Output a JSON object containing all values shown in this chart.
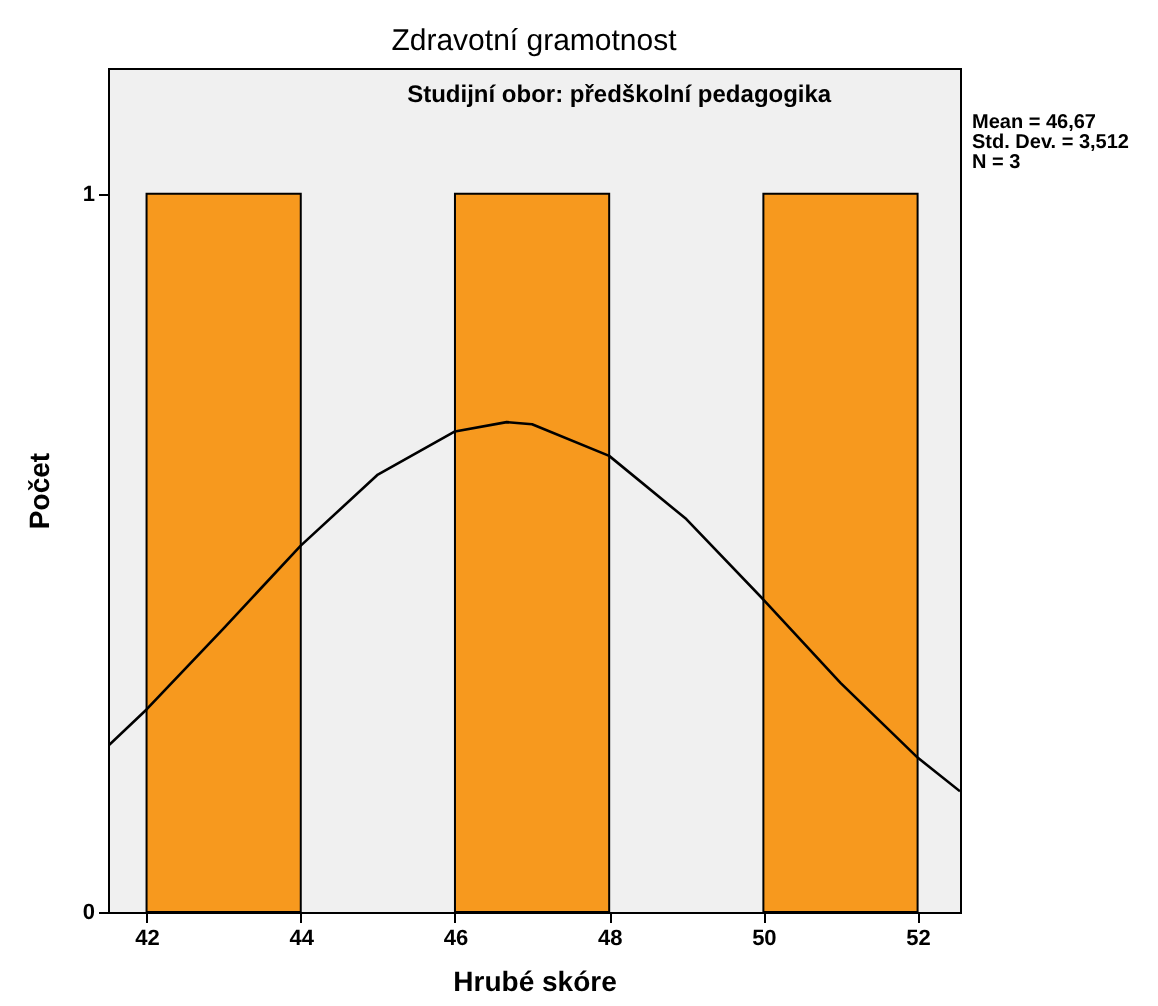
{
  "chart_data": {
    "type": "histogram",
    "title": "Zdravotní gramotnost",
    "subtitle": "Studijní obor: předškolní pedagogika",
    "xlabel": "Hrubé skóre",
    "ylabel": "Počet",
    "bins": [
      42,
      44,
      46,
      48,
      50,
      52
    ],
    "values": [
      1,
      0,
      1,
      0,
      1
    ],
    "color": "#f7991e",
    "series": [
      {
        "type": "line",
        "color": "#000000",
        "x": [
          41.5,
          42,
          43,
          44,
          45,
          46,
          46.67,
          47,
          48,
          49,
          50,
          51,
          52,
          52.55
        ],
        "values": [
          0.231,
          0.282,
          0.395,
          0.51,
          0.609,
          0.669,
          0.682,
          0.679,
          0.635,
          0.547,
          0.435,
          0.319,
          0.215,
          0.168
        ]
      }
    ],
    "xlim": [
      41.5,
      52.55
    ],
    "ylim": [
      0,
      1.175
    ],
    "xticks": [
      42,
      44,
      46,
      48,
      50,
      52
    ],
    "yticks": [
      0,
      1
    ],
    "grid": false,
    "annotations": [
      "Mean = 46,67",
      "Std. Dev. = 3,512",
      "N = 3"
    ]
  }
}
